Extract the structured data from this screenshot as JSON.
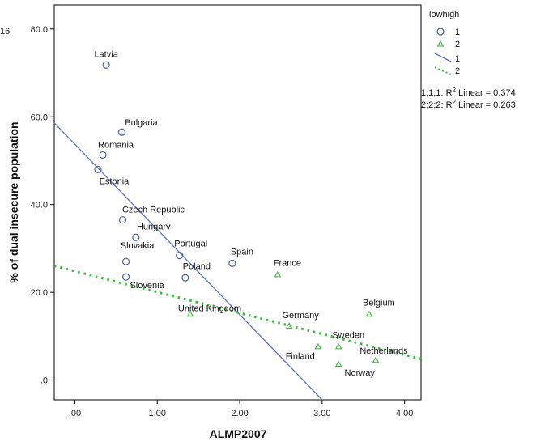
{
  "chart_data": {
    "type": "scatter",
    "xlabel": "ALMP2007",
    "ylabel": "% of dual insecure population",
    "xlim": [
      -0.25,
      4.2
    ],
    "ylim": [
      -4.5,
      85.5
    ],
    "x_ticks": [
      ".00",
      "1.00",
      "2.00",
      "3.00",
      "4.00"
    ],
    "x_tick_values": [
      0,
      1,
      2,
      3,
      4
    ],
    "y_ticks": [
      ".0",
      "20.0",
      "40.0",
      "60.0",
      "80.0"
    ],
    "y_tick_values": [
      0,
      20,
      40,
      60,
      80
    ],
    "corner_label": "16",
    "legend": {
      "title": "lowhigh",
      "items": [
        "1",
        "2",
        "1",
        "2"
      ]
    },
    "fit_labels": [
      {
        "prefix": "1;1;1: R",
        "sup": "2",
        "suffix": " Linear = 0.374"
      },
      {
        "prefix": "2;2;2: R",
        "sup": "2",
        "suffix": " Linear = 0.263"
      }
    ],
    "series": [
      {
        "name": "1",
        "marker": "circle",
        "color": "#4a5fa8",
        "points": [
          {
            "label": "Latvia",
            "x": 0.38,
            "y": 71.8
          },
          {
            "label": "Bulgaria",
            "x": 0.57,
            "y": 56.5
          },
          {
            "label": "Romania",
            "x": 0.34,
            "y": 51.3
          },
          {
            "label": "Estonia",
            "x": 0.28,
            "y": 48.0
          },
          {
            "label": "Czech Republic",
            "x": 0.58,
            "y": 36.5
          },
          {
            "label": "Hungary",
            "x": 0.74,
            "y": 32.5
          },
          {
            "label": "Portugal",
            "x": 1.27,
            "y": 28.4
          },
          {
            "label": "Spain",
            "x": 1.91,
            "y": 26.6
          },
          {
            "label": "Slovakia",
            "x": 0.62,
            "y": 27.0
          },
          {
            "label": "Poland",
            "x": 1.34,
            "y": 23.3
          },
          {
            "label": "Slovenia",
            "x": 0.62,
            "y": 23.5
          }
        ]
      },
      {
        "name": "2",
        "marker": "triangle",
        "color": "#3cae3c",
        "points": [
          {
            "label": "France",
            "x": 2.46,
            "y": 24.0
          },
          {
            "label": "United Kingdom",
            "x": 1.4,
            "y": 15.0
          },
          {
            "label": "Belgium",
            "x": 3.57,
            "y": 15.0
          },
          {
            "label": "Germany",
            "x": 2.6,
            "y": 12.3
          },
          {
            "label": "Sweden",
            "x": 3.2,
            "y": 7.6
          },
          {
            "label": "Finland",
            "x": 2.95,
            "y": 7.6
          },
          {
            "label": "Netherlands",
            "x": 3.65,
            "y": 4.5
          },
          {
            "label": "Norway",
            "x": 3.2,
            "y": 3.6
          }
        ]
      }
    ],
    "fit_lines": [
      {
        "series": "1",
        "style": "solid",
        "color": "#5a6fc0",
        "x": [
          -0.25,
          3.0
        ],
        "y": [
          58.6,
          -4.5
        ]
      },
      {
        "series": "2",
        "style": "dotted",
        "color": "#33bb33",
        "x": [
          -0.25,
          4.2
        ],
        "y": [
          26.0,
          4.8
        ]
      }
    ]
  }
}
